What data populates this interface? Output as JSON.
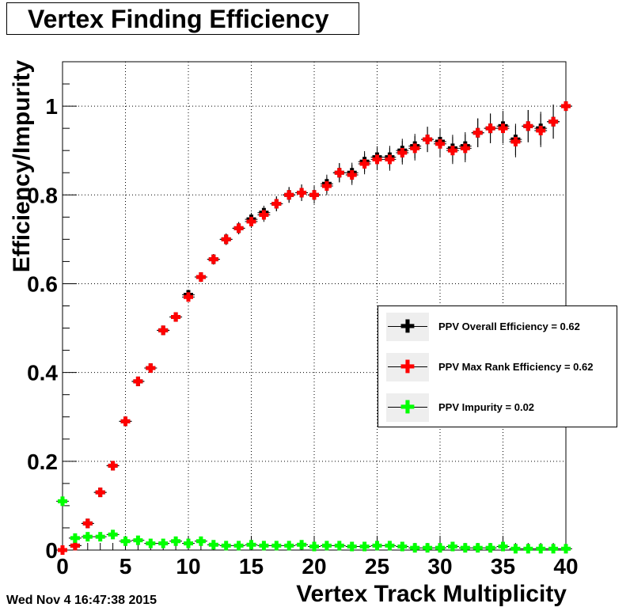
{
  "chart_data": {
    "type": "scatter",
    "title": "Vertex Finding Efficiency",
    "xlabel": "Vertex Track Multiplicity",
    "ylabel": "Efficiency/Impurity",
    "xlim": [
      0,
      40
    ],
    "ylim": [
      0,
      1.1
    ],
    "x_ticks": [
      "0",
      "5",
      "10",
      "15",
      "20",
      "25",
      "30",
      "35",
      "40"
    ],
    "y_ticks": [
      "0",
      "0.2",
      "0.4",
      "0.6",
      "0.8",
      "1"
    ],
    "grid": true,
    "legend_position": "right",
    "x": [
      0,
      1,
      2,
      3,
      4,
      5,
      6,
      7,
      8,
      9,
      10,
      11,
      12,
      13,
      14,
      15,
      16,
      17,
      18,
      19,
      20,
      21,
      22,
      23,
      24,
      25,
      26,
      27,
      28,
      29,
      30,
      31,
      32,
      33,
      34,
      35,
      36,
      37,
      38,
      39,
      40
    ],
    "series": [
      {
        "name": "PPV Overall Efficiency = 0.62",
        "color": "#000000",
        "values": [
          0.0,
          0.01,
          0.06,
          0.13,
          0.19,
          0.29,
          0.38,
          0.41,
          0.495,
          0.525,
          0.575,
          0.615,
          0.655,
          0.7,
          0.725,
          0.745,
          0.76,
          0.78,
          0.8,
          0.805,
          0.8,
          0.825,
          0.85,
          0.85,
          0.875,
          0.885,
          0.885,
          0.9,
          0.91,
          0.925,
          0.92,
          0.905,
          0.91,
          0.94,
          0.95,
          0.955,
          0.925,
          0.955,
          0.95,
          0.965,
          1.0
        ]
      },
      {
        "name": "PPV Max Rank Efficiency = 0.62",
        "color": "#ff0000",
        "values": [
          0.0,
          0.01,
          0.06,
          0.13,
          0.19,
          0.29,
          0.38,
          0.41,
          0.495,
          0.525,
          0.57,
          0.615,
          0.655,
          0.7,
          0.725,
          0.74,
          0.755,
          0.78,
          0.8,
          0.805,
          0.8,
          0.82,
          0.85,
          0.845,
          0.87,
          0.88,
          0.88,
          0.895,
          0.905,
          0.925,
          0.915,
          0.9,
          0.905,
          0.94,
          0.95,
          0.95,
          0.92,
          0.955,
          0.945,
          0.965,
          1.0
        ]
      },
      {
        "name": "PPV Impurity = 0.02",
        "color": "#00ff00",
        "values": [
          0.11,
          0.027,
          0.03,
          0.03,
          0.035,
          0.02,
          0.022,
          0.015,
          0.015,
          0.02,
          0.015,
          0.02,
          0.012,
          0.01,
          0.01,
          0.012,
          0.01,
          0.01,
          0.01,
          0.012,
          0.008,
          0.01,
          0.01,
          0.008,
          0.008,
          0.01,
          0.01,
          0.008,
          0.005,
          0.005,
          0.005,
          0.008,
          0.005,
          0.005,
          0.005,
          0.008,
          0.003,
          0.003,
          0.003,
          0.003,
          0.003
        ]
      }
    ],
    "footer": "Wed Nov  4 16:47:38 2015"
  }
}
